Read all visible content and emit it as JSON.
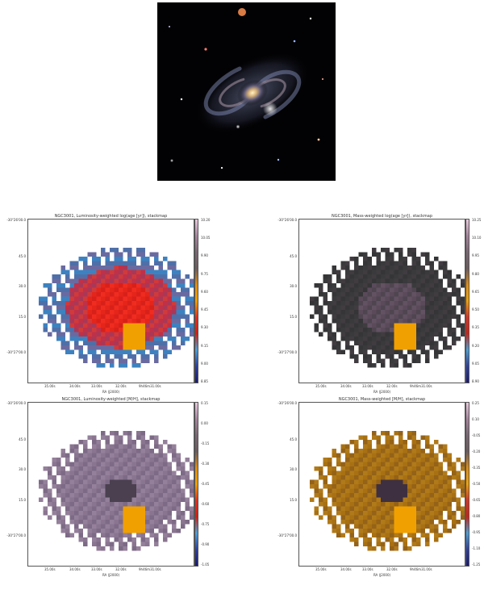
{
  "figure": {
    "photo_alt": "NGC3001 optical image",
    "axis": {
      "xlabel": "RA (J2000)",
      "yticks": [
        "-30°26'00.0",
        "45.0",
        "30.0",
        "15.0",
        "-30°27'00.0"
      ],
      "xticks": [
        "35.00s",
        "34.00s",
        "33.00s",
        "32.00s",
        "9h46m31.00s"
      ]
    },
    "panels": [
      {
        "id": "lw-age",
        "title": "NGC3001, Luminosity-weighted log(age [yr]), stackmap",
        "scheme": "age-lw",
        "cbar": [
          "10.20",
          "10.05",
          "9.90",
          "9.75",
          "9.60",
          "9.45",
          "9.30",
          "9.15",
          "9.00",
          "8.85"
        ],
        "cbar_gradient": [
          "#e8c8dc",
          "#a7849d",
          "#7a6872",
          "#6b5b5e",
          "#e08c10",
          "#f0a000",
          "#e03020",
          "#d02015",
          "#4aa0d8",
          "#2d3f9e",
          "#1a1a70"
        ]
      },
      {
        "id": "mw-age",
        "title": "NGC3001, Mass-weighted log(age [yr]), stackmap",
        "scheme": "age-mw",
        "cbar": [
          "10.25",
          "10.10",
          "9.95",
          "9.80",
          "9.65",
          "9.50",
          "9.35",
          "9.20",
          "9.05",
          "8.90"
        ],
        "cbar_gradient": [
          "#e8c8dc",
          "#a7849d",
          "#7a6872",
          "#6b5b5e",
          "#e08c10",
          "#f0a000",
          "#e03020",
          "#d02015",
          "#4aa0d8",
          "#2d3f9e",
          "#1a1a70"
        ]
      },
      {
        "id": "lw-met",
        "title": "NGC3001, Luminosity-weighted [M/H], stackmap",
        "scheme": "met-lw",
        "cbar": [
          "0.15",
          "0.00",
          "-0.15",
          "-0.30",
          "-0.45",
          "-0.60",
          "-0.75",
          "-0.90",
          "-1.05"
        ],
        "cbar_gradient": [
          "#e8c8dc",
          "#a7849d",
          "#7a6872",
          "#6b5b5e",
          "#e08c10",
          "#f0a000",
          "#e03020",
          "#d02015",
          "#4aa0d8",
          "#2d3f9e",
          "#1a1a70"
        ]
      },
      {
        "id": "mw-met",
        "title": "NGC3001, Mass-weighted [M/H], stackmap",
        "scheme": "met-mw",
        "cbar": [
          "0.25",
          "0.10",
          "-0.05",
          "-0.20",
          "-0.35",
          "-0.50",
          "-0.65",
          "-0.80",
          "-0.95",
          "-1.10",
          "-1.25"
        ],
        "cbar_gradient": [
          "#e8c8dc",
          "#a7849d",
          "#7a6872",
          "#6b5b5e",
          "#e08c10",
          "#f0a000",
          "#e03020",
          "#d02015",
          "#4aa0d8",
          "#2d3f9e",
          "#1a1a70"
        ]
      }
    ]
  }
}
